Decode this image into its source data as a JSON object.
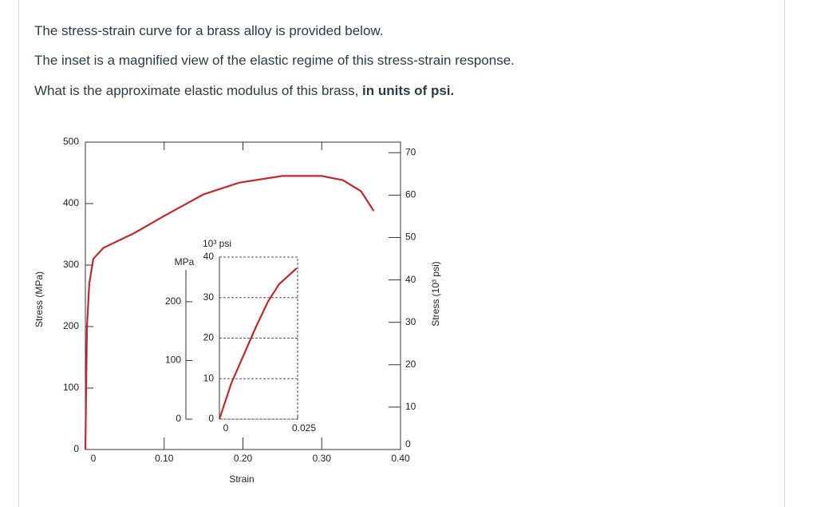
{
  "question": {
    "lines": [
      "The stress-strain curve for a brass alloy is provided below.",
      "The inset is a magnified view of the elastic regime of this stress-strain response."
    ],
    "prompt": "What is the approximate elastic modulus of this brass, ",
    "prompt_bold": "in units of psi."
  },
  "chart_data": [
    {
      "type": "line",
      "x_label": "Strain",
      "y_label": "Stress (MPa)",
      "y2_label": "Stress (10³ psi)",
      "xlim": [
        0,
        0.4
      ],
      "xticks": [
        0,
        {
          "value": 0.1,
          "label": "0.10"
        },
        {
          "value": 0.2,
          "label": "0.20"
        },
        {
          "value": 0.3,
          "label": "0.30"
        },
        {
          "value": 0.4,
          "label": "0.40"
        }
      ],
      "ylim": [
        0,
        500
      ],
      "yticks": [
        0,
        100,
        200,
        300,
        400,
        500
      ],
      "y2lim": [
        0,
        72.5
      ],
      "y2ticks": [
        0,
        10,
        20,
        30,
        40,
        50,
        60,
        70
      ],
      "x": [
        0,
        0.002,
        0.005,
        0.01,
        0.023,
        0.062,
        0.1,
        0.15,
        0.195,
        0.25,
        0.3,
        0.327,
        0.35,
        0.366
      ],
      "series": [
        {
          "color": "#c0282a",
          "values": [
            0,
            200,
            270,
            310,
            328,
            352,
            380,
            415,
            434,
            445,
            445,
            438,
            420,
            388
          ]
        }
      ]
    },
    {
      "type": "line",
      "y_label": "MPa",
      "y2_label": "10³ psi",
      "xlim": [
        0,
        0.025
      ],
      "xticks": [
        0,
        {
          "value": 0.025,
          "label": "0.025"
        }
      ],
      "ylim": [
        0,
        276
      ],
      "yticks": [
        0,
        100,
        200
      ],
      "y2lim": [
        0,
        40
      ],
      "y2ticks": [
        0,
        10,
        20,
        30,
        40
      ],
      "x": [
        0,
        0.0038,
        0.0115,
        0.0155,
        0.0191,
        0.0247
      ],
      "series": [
        {
          "color": "#c0282a",
          "values": [
            0,
            61,
            155,
            200,
            230,
            257
          ]
        }
      ]
    }
  ]
}
